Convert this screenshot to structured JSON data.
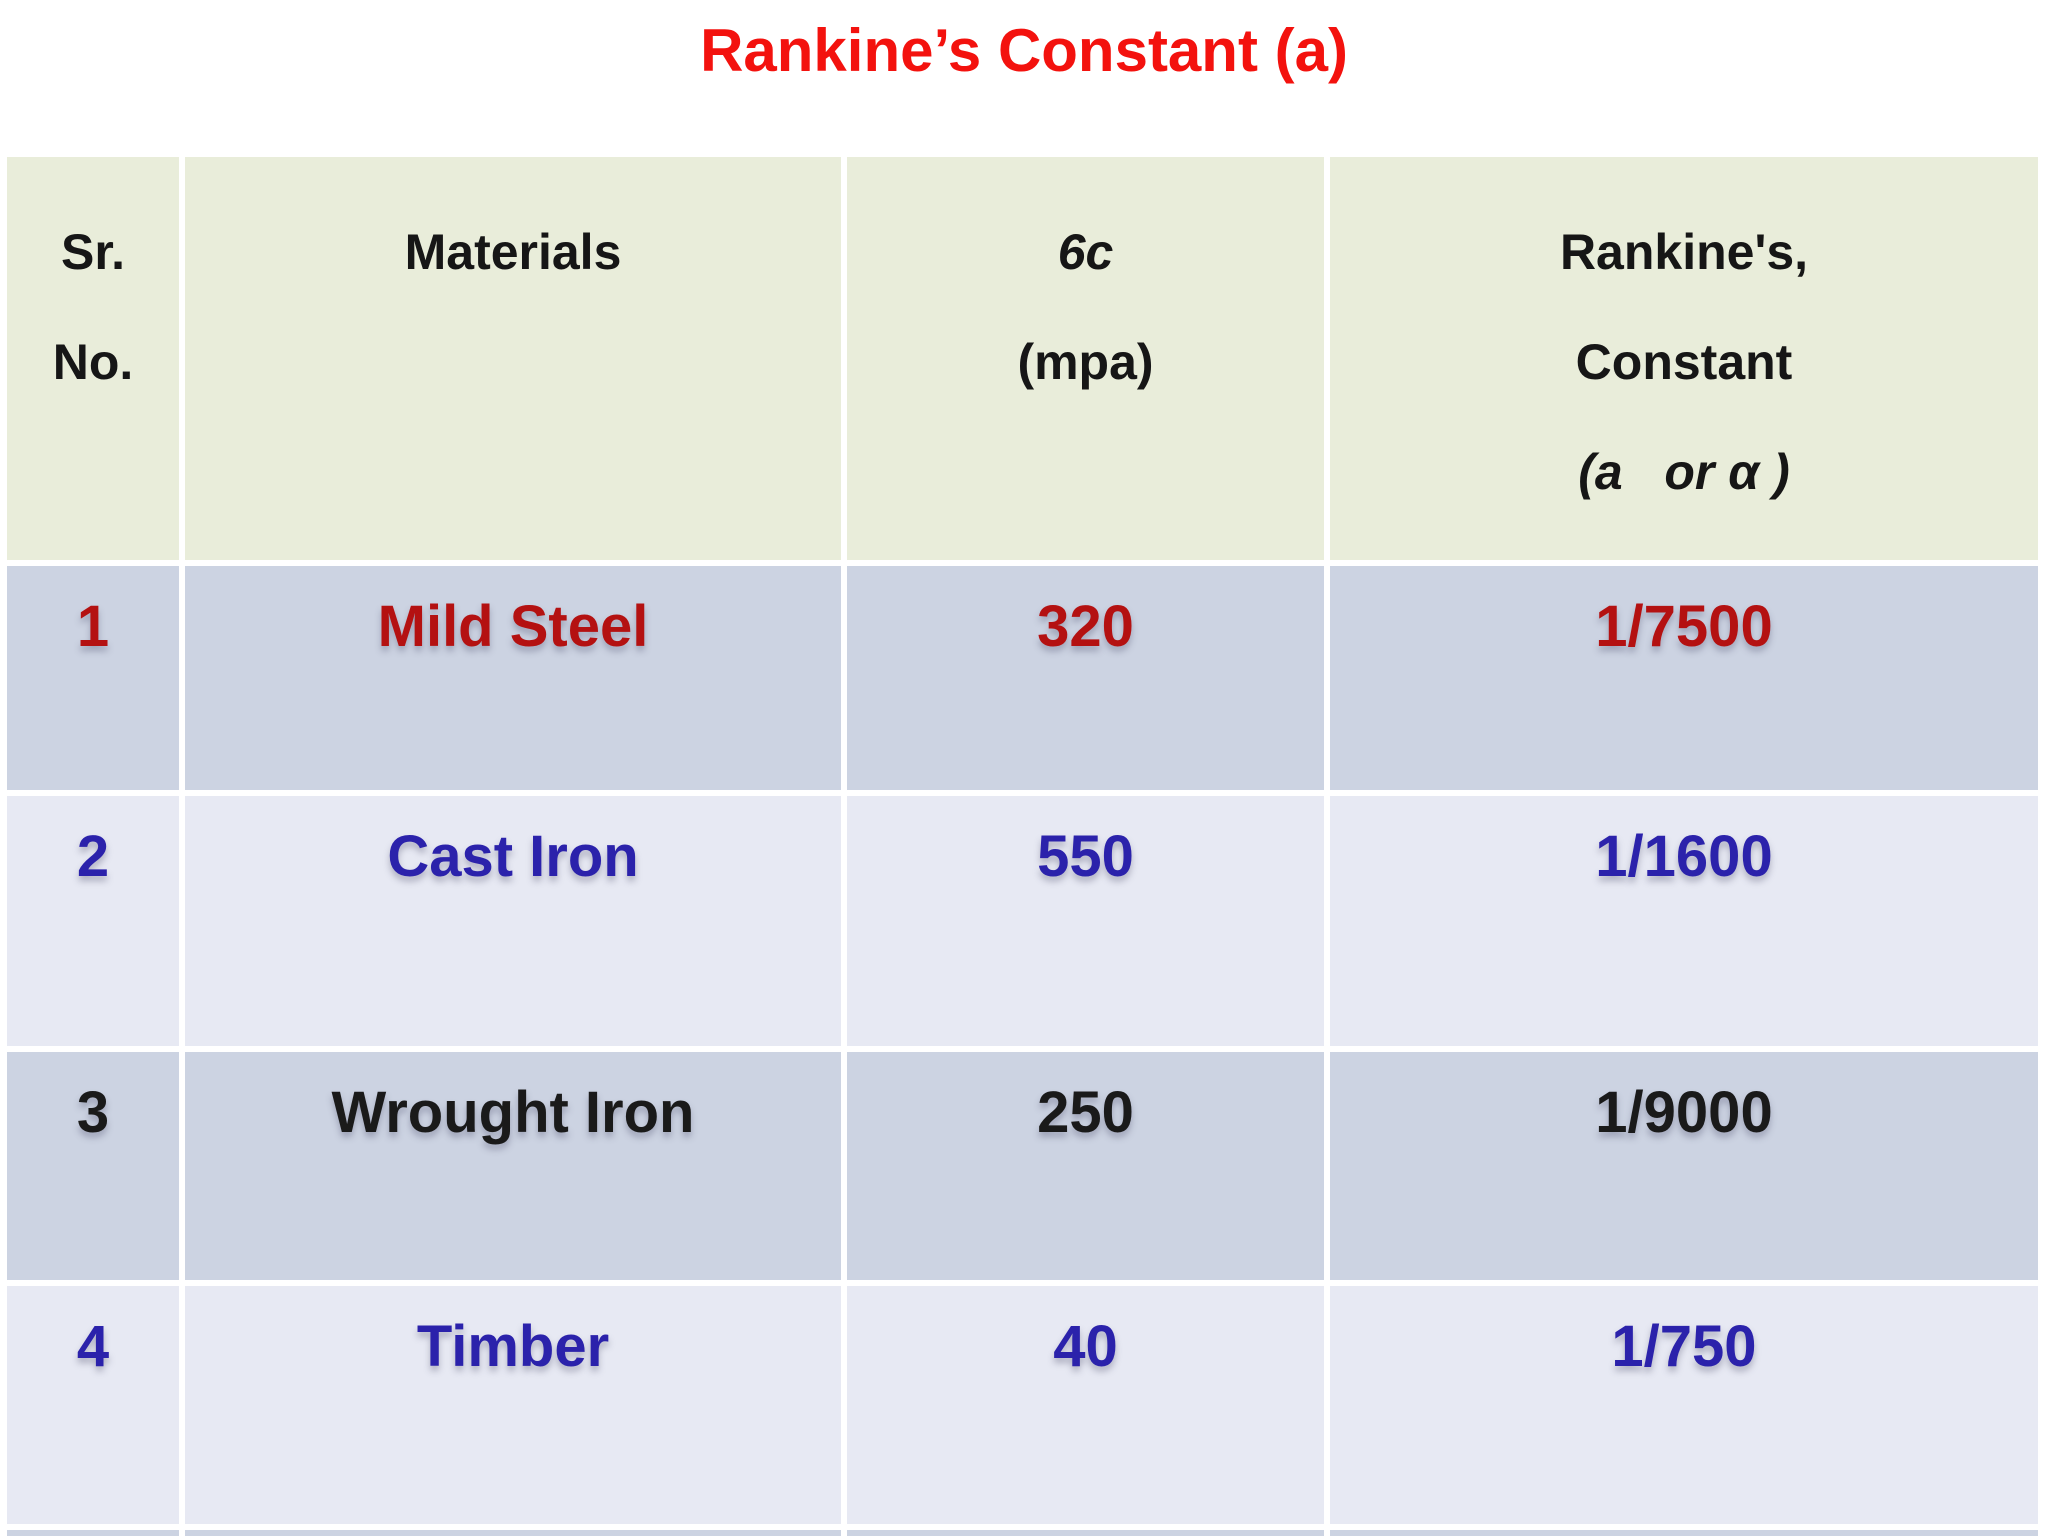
{
  "title": "Rankine’s Constant (a)",
  "colors": {
    "title_red": "#f3120e",
    "header_bg": "#e9edda",
    "row_dark_bg": "#ccd3e2",
    "row_light_bg": "#e7e9f3",
    "dark_red": "#b41111",
    "dark_blue": "#2b22ab",
    "black": "#1a1a1a"
  },
  "table": {
    "headers": [
      {
        "line1": "Sr.",
        "line2": "No."
      },
      {
        "line1": "Materials"
      },
      {
        "line1": "6c",
        "line2": "(mpa)"
      },
      {
        "line1": "Rankine's,",
        "line2": "Constant",
        "line3": "(a   or α )"
      }
    ],
    "rows": [
      {
        "sr_no": "1",
        "material": "Mild Steel",
        "sigma_c_mpa": "320",
        "rankines_constant": "1/7500",
        "color": "#b41111"
      },
      {
        "sr_no": "2",
        "material": "Cast Iron",
        "sigma_c_mpa": "550",
        "rankines_constant": "1/1600",
        "color": "#2b22ab"
      },
      {
        "sr_no": "3",
        "material": "Wrought Iron",
        "sigma_c_mpa": "250",
        "rankines_constant": "1/9000",
        "color": "#1a1a1a"
      },
      {
        "sr_no": "4",
        "material": "Timber",
        "sigma_c_mpa": "40",
        "rankines_constant": "1/750",
        "color": "#2b22ab"
      }
    ]
  }
}
